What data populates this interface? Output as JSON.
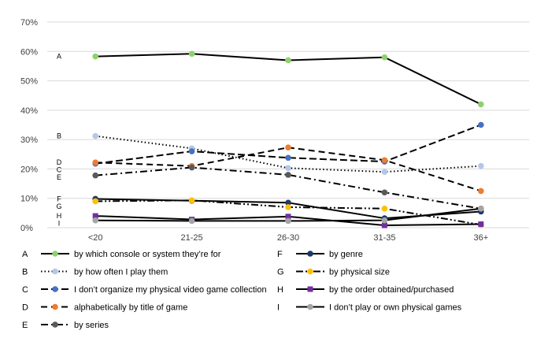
{
  "chart_data": {
    "type": "line",
    "title": "",
    "xlabel": "",
    "ylabel": "",
    "categories": [
      "<20",
      "21-25",
      "26-30",
      "31-35",
      "36+"
    ],
    "ylim": [
      0,
      70
    ],
    "yticks": [
      "0%",
      "10%",
      "20%",
      "30%",
      "40%",
      "50%",
      "60%",
      "70%"
    ],
    "ytick_values": [
      0,
      10,
      20,
      30,
      40,
      50,
      60,
      70
    ],
    "grid": "horizontal",
    "legend_position": "bottom",
    "series": [
      {
        "letter": "A",
        "name": "by which console or system they’re for",
        "values": [
          58.3,
          59.2,
          57.0,
          58.0,
          42.0
        ],
        "color": "#000000",
        "marker_color": "#8fd16e",
        "marker": "circle",
        "dash": "solid"
      },
      {
        "letter": "B",
        "name": "by how often I play them",
        "values": [
          31.2,
          27.0,
          20.3,
          19.0,
          21.0
        ],
        "color": "#000000",
        "marker_color": "#b4c7e7",
        "marker": "circle",
        "dash": "dotted"
      },
      {
        "letter": "C",
        "name": "I don’t organize my physical video game collection",
        "values": [
          21.8,
          26.0,
          23.8,
          22.5,
          35.0
        ],
        "color": "#000000",
        "marker_color": "#4472c4",
        "marker": "circle",
        "dash": "longdash"
      },
      {
        "letter": "D",
        "name": "alphabetically by title of game",
        "values": [
          22.2,
          21.0,
          27.3,
          23.0,
          12.5
        ],
        "color": "#000000",
        "marker_color": "#ed7d31",
        "marker": "circle",
        "dash": "dash"
      },
      {
        "letter": "E",
        "name": "by series",
        "values": [
          17.8,
          20.5,
          18.0,
          12.0,
          6.5
        ],
        "color": "#000000",
        "marker_color": "#595959",
        "marker": "circle",
        "dash": "dashdot"
      },
      {
        "letter": "F",
        "name": "by genre",
        "values": [
          9.8,
          9.2,
          8.5,
          3.2,
          5.5
        ],
        "color": "#000000",
        "marker_color": "#1f3864",
        "marker": "circle",
        "dash": "solid"
      },
      {
        "letter": "G",
        "name": "by physical size",
        "values": [
          9.0,
          9.3,
          7.0,
          6.5,
          1.0
        ],
        "color": "#000000",
        "marker_color": "#ffc000",
        "marker": "circle",
        "dash": "dashdotdot"
      },
      {
        "letter": "H",
        "name": "by the order obtained/purchased",
        "values": [
          4.0,
          2.8,
          3.8,
          0.8,
          1.2
        ],
        "color": "#000000",
        "marker_color": "#7030a0",
        "marker": "square",
        "dash": "solid"
      },
      {
        "letter": "I",
        "name": "I don’t play or own physical games",
        "values": [
          2.5,
          2.3,
          2.3,
          2.5,
          6.5
        ],
        "color": "#000000",
        "marker_color": "#a5a5a5",
        "marker": "circle",
        "dash": "solid"
      }
    ]
  }
}
